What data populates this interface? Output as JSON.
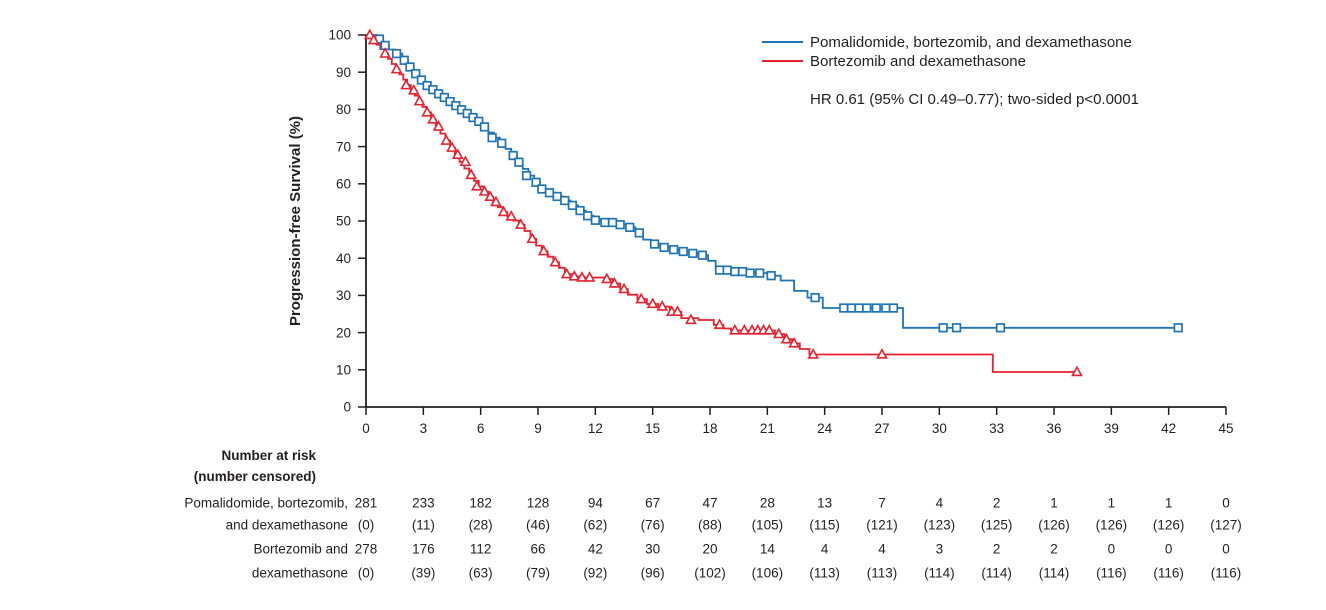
{
  "colors": {
    "blue": "#1f74b8",
    "red": "#e8212e",
    "text": "#231f20",
    "axis": "#231f20"
  },
  "annotation": "HR 0.61 (95% CI 0.49–0.77); two-sided p<0.0001",
  "chart_data": {
    "type": "line",
    "subtype": "kaplan-meier-step",
    "title": "",
    "xlabel": "",
    "ylabel": "Progression-free Survival (%)",
    "xlim": [
      0,
      45
    ],
    "ylim": [
      0,
      100
    ],
    "x_ticks": [
      0,
      3,
      6,
      9,
      12,
      15,
      18,
      21,
      24,
      27,
      30,
      33,
      36,
      39,
      42,
      45
    ],
    "y_ticks": [
      0,
      10,
      20,
      30,
      40,
      50,
      60,
      70,
      80,
      90,
      100
    ],
    "grid": false,
    "legend_position": "top-right",
    "hr_annotation": "HR 0.61 (95% CI 0.49–0.77); two-sided p<0.0001",
    "series": [
      {
        "name": "Pomalidomide, bortezomib, and dexamethasone",
        "color": "#1f74b8",
        "marker": "square",
        "end_month": 42.5,
        "steps": [
          [
            0,
            100
          ],
          [
            0.6,
            98.9
          ],
          [
            0.9,
            97.2
          ],
          [
            1.2,
            96.1
          ],
          [
            1.5,
            95.0
          ],
          [
            1.9,
            93.2
          ],
          [
            2.2,
            91.4
          ],
          [
            2.5,
            89.6
          ],
          [
            2.8,
            87.9
          ],
          [
            3.1,
            86.4
          ],
          [
            3.4,
            85.3
          ],
          [
            3.7,
            84.2
          ],
          [
            4.0,
            83.2
          ],
          [
            4.3,
            82.1
          ],
          [
            4.6,
            81.0
          ],
          [
            4.9,
            79.9
          ],
          [
            5.2,
            78.9
          ],
          [
            5.5,
            77.8
          ],
          [
            5.8,
            76.8
          ],
          [
            6.1,
            75.3
          ],
          [
            6.4,
            73.8
          ],
          [
            6.7,
            72.4
          ],
          [
            7.0,
            70.9
          ],
          [
            7.3,
            69.4
          ],
          [
            7.6,
            67.6
          ],
          [
            7.9,
            65.8
          ],
          [
            8.2,
            64.0
          ],
          [
            8.5,
            62.2
          ],
          [
            8.8,
            60.4
          ],
          [
            9.1,
            58.6
          ],
          [
            9.5,
            57.6
          ],
          [
            9.9,
            56.6
          ],
          [
            10.3,
            55.5
          ],
          [
            10.7,
            54.2
          ],
          [
            11.1,
            52.8
          ],
          [
            11.5,
            51.4
          ],
          [
            11.9,
            50.2
          ],
          [
            12.3,
            49.6
          ],
          [
            13.1,
            49.0
          ],
          [
            13.7,
            48.3
          ],
          [
            14.1,
            46.8
          ],
          [
            14.5,
            45.0
          ],
          [
            14.9,
            43.8
          ],
          [
            15.4,
            42.9
          ],
          [
            15.9,
            42.3
          ],
          [
            16.4,
            41.8
          ],
          [
            16.9,
            41.3
          ],
          [
            17.4,
            40.8
          ],
          [
            17.9,
            39.3
          ],
          [
            18.3,
            37.4
          ],
          [
            18.7,
            36.8
          ],
          [
            19.5,
            36.4
          ],
          [
            20.3,
            36.0
          ],
          [
            21.0,
            35.3
          ],
          [
            21.7,
            34.0
          ],
          [
            22.4,
            31.2
          ],
          [
            23.1,
            29.4
          ],
          [
            23.9,
            26.6
          ],
          [
            28.1,
            21.3
          ]
        ],
        "censor_marks": [
          [
            0.7,
            98.9
          ],
          [
            1.0,
            97.2
          ],
          [
            1.6,
            95.0
          ],
          [
            2.0,
            93.2
          ],
          [
            2.3,
            91.4
          ],
          [
            2.6,
            89.6
          ],
          [
            2.9,
            87.9
          ],
          [
            3.2,
            86.4
          ],
          [
            3.5,
            85.3
          ],
          [
            3.8,
            84.2
          ],
          [
            4.1,
            83.2
          ],
          [
            4.4,
            82.1
          ],
          [
            4.7,
            81.0
          ],
          [
            5.0,
            79.9
          ],
          [
            5.3,
            78.9
          ],
          [
            5.6,
            77.8
          ],
          [
            5.9,
            76.8
          ],
          [
            6.2,
            75.3
          ],
          [
            6.6,
            72.4
          ],
          [
            7.1,
            70.9
          ],
          [
            7.7,
            67.6
          ],
          [
            8.0,
            65.8
          ],
          [
            8.4,
            62.2
          ],
          [
            8.9,
            60.4
          ],
          [
            9.2,
            58.6
          ],
          [
            9.6,
            57.6
          ],
          [
            10.0,
            56.6
          ],
          [
            10.4,
            55.5
          ],
          [
            10.8,
            54.2
          ],
          [
            11.2,
            52.8
          ],
          [
            11.6,
            51.4
          ],
          [
            12.0,
            50.2
          ],
          [
            12.5,
            49.6
          ],
          [
            12.9,
            49.6
          ],
          [
            13.3,
            49.0
          ],
          [
            13.8,
            48.3
          ],
          [
            14.3,
            46.8
          ],
          [
            15.1,
            43.8
          ],
          [
            15.6,
            42.9
          ],
          [
            16.1,
            42.3
          ],
          [
            16.6,
            41.8
          ],
          [
            17.1,
            41.3
          ],
          [
            17.6,
            40.8
          ],
          [
            18.5,
            36.8
          ],
          [
            18.9,
            36.8
          ],
          [
            19.3,
            36.4
          ],
          [
            19.7,
            36.4
          ],
          [
            20.1,
            36.0
          ],
          [
            20.6,
            36.0
          ],
          [
            21.2,
            35.3
          ],
          [
            23.5,
            29.4
          ],
          [
            25.0,
            26.6
          ],
          [
            25.4,
            26.6
          ],
          [
            25.8,
            26.6
          ],
          [
            26.2,
            26.6
          ],
          [
            26.7,
            26.6
          ],
          [
            27.2,
            26.6
          ],
          [
            27.6,
            26.6
          ],
          [
            30.2,
            21.3
          ],
          [
            30.9,
            21.3
          ],
          [
            33.2,
            21.3
          ],
          [
            42.5,
            21.3
          ]
        ]
      },
      {
        "name": "Bortezomib and dexamethasone",
        "color": "#e8212e",
        "marker": "triangle",
        "end_month": 37.2,
        "steps": [
          [
            0,
            100
          ],
          [
            0.35,
            98.6
          ],
          [
            0.55,
            97.4
          ],
          [
            0.75,
            96.2
          ],
          [
            0.95,
            95.0
          ],
          [
            1.15,
            93.6
          ],
          [
            1.35,
            92.2
          ],
          [
            1.55,
            90.8
          ],
          [
            1.75,
            89.4
          ],
          [
            1.95,
            88.0
          ],
          [
            2.15,
            86.5
          ],
          [
            2.35,
            85.1
          ],
          [
            2.55,
            83.7
          ],
          [
            2.75,
            82.2
          ],
          [
            2.95,
            80.7
          ],
          [
            3.15,
            79.2
          ],
          [
            3.4,
            77.3
          ],
          [
            3.65,
            75.4
          ],
          [
            3.9,
            73.5
          ],
          [
            4.15,
            71.6
          ],
          [
            4.4,
            69.7
          ],
          [
            4.65,
            67.8
          ],
          [
            4.9,
            65.9
          ],
          [
            5.15,
            64.1
          ],
          [
            5.4,
            62.4
          ],
          [
            5.65,
            60.8
          ],
          [
            5.9,
            59.3
          ],
          [
            6.15,
            57.9
          ],
          [
            6.4,
            56.5
          ],
          [
            6.65,
            55.1
          ],
          [
            6.9,
            53.7
          ],
          [
            7.15,
            52.4
          ],
          [
            7.4,
            51.2
          ],
          [
            7.7,
            50.1
          ],
          [
            8.0,
            49.0
          ],
          [
            8.3,
            47.3
          ],
          [
            8.6,
            45.2
          ],
          [
            8.9,
            43.4
          ],
          [
            9.2,
            41.9
          ],
          [
            9.5,
            40.4
          ],
          [
            9.8,
            38.9
          ],
          [
            10.1,
            37.4
          ],
          [
            10.4,
            35.7
          ],
          [
            10.8,
            35.1
          ],
          [
            11.4,
            34.8
          ],
          [
            12.5,
            34.4
          ],
          [
            12.9,
            33.2
          ],
          [
            13.3,
            31.7
          ],
          [
            13.7,
            30.2
          ],
          [
            14.2,
            29.0
          ],
          [
            14.7,
            27.7
          ],
          [
            15.3,
            27.0
          ],
          [
            15.9,
            25.6
          ],
          [
            16.5,
            23.9
          ],
          [
            17.4,
            23.4
          ],
          [
            18.2,
            22.1
          ],
          [
            18.7,
            21.1
          ],
          [
            19.1,
            20.6
          ],
          [
            21.4,
            19.6
          ],
          [
            21.9,
            18.2
          ],
          [
            22.3,
            17.1
          ],
          [
            22.7,
            15.6
          ],
          [
            23.2,
            14.1
          ],
          [
            32.8,
            9.4
          ]
        ],
        "censor_marks": [
          [
            0.2,
            100
          ],
          [
            0.4,
            98.6
          ],
          [
            1.0,
            95.0
          ],
          [
            1.6,
            90.8
          ],
          [
            2.1,
            86.5
          ],
          [
            2.5,
            85.1
          ],
          [
            2.8,
            82.2
          ],
          [
            3.2,
            79.2
          ],
          [
            3.5,
            77.3
          ],
          [
            3.8,
            75.4
          ],
          [
            4.2,
            71.6
          ],
          [
            4.5,
            69.7
          ],
          [
            4.8,
            67.8
          ],
          [
            5.2,
            65.9
          ],
          [
            5.5,
            62.4
          ],
          [
            5.8,
            59.3
          ],
          [
            6.2,
            57.9
          ],
          [
            6.5,
            56.5
          ],
          [
            6.8,
            55.1
          ],
          [
            7.2,
            52.4
          ],
          [
            7.6,
            51.2
          ],
          [
            8.1,
            49.0
          ],
          [
            8.7,
            45.2
          ],
          [
            9.3,
            41.9
          ],
          [
            9.9,
            38.9
          ],
          [
            10.5,
            35.7
          ],
          [
            10.9,
            35.1
          ],
          [
            11.3,
            34.8
          ],
          [
            11.7,
            34.8
          ],
          [
            12.6,
            34.4
          ],
          [
            13.0,
            33.2
          ],
          [
            13.5,
            31.7
          ],
          [
            14.4,
            29.0
          ],
          [
            15.0,
            27.7
          ],
          [
            15.5,
            27.0
          ],
          [
            16.0,
            25.6
          ],
          [
            16.3,
            25.6
          ],
          [
            17.0,
            23.4
          ],
          [
            18.5,
            22.1
          ],
          [
            19.3,
            20.6
          ],
          [
            19.8,
            20.6
          ],
          [
            20.2,
            20.6
          ],
          [
            20.5,
            20.6
          ],
          [
            20.8,
            20.6
          ],
          [
            21.1,
            20.6
          ],
          [
            21.6,
            19.6
          ],
          [
            22.0,
            18.2
          ],
          [
            22.4,
            17.1
          ],
          [
            23.4,
            14.1
          ],
          [
            27.0,
            14.1
          ],
          [
            37.2,
            9.4
          ]
        ]
      }
    ]
  },
  "risk_table": {
    "header_line1": "Number at risk",
    "header_line2": "(number censored)",
    "months": [
      0,
      3,
      6,
      9,
      12,
      15,
      18,
      21,
      24,
      27,
      30,
      33,
      36,
      39,
      42,
      45
    ],
    "rows": [
      {
        "label_lines": [
          "Pomalidomide, bortezomib,",
          "and dexamethasone"
        ],
        "at_risk": [
          "281",
          "233",
          "182",
          "128",
          "94",
          "67",
          "47",
          "28",
          "13",
          "7",
          "4",
          "2",
          "1",
          "1",
          "1",
          "0"
        ],
        "censored": [
          "(0)",
          "(11)",
          "(28)",
          "(46)",
          "(62)",
          "(76)",
          "(88)",
          "(105)",
          "(115)",
          "(121)",
          "(123)",
          "(125)",
          "(126)",
          "(126)",
          "(126)",
          "(127)"
        ]
      },
      {
        "label_lines": [
          "Bortezomib and",
          "dexamethasone"
        ],
        "at_risk": [
          "278",
          "176",
          "112",
          "66",
          "42",
          "30",
          "20",
          "14",
          "4",
          "4",
          "3",
          "2",
          "2",
          "0",
          "0",
          "0"
        ],
        "censored": [
          "(0)",
          "(39)",
          "(63)",
          "(79)",
          "(92)",
          "(96)",
          "(102)",
          "(106)",
          "(113)",
          "(113)",
          "(114)",
          "(114)",
          "(114)",
          "(116)",
          "(116)",
          "(116)"
        ]
      }
    ]
  }
}
